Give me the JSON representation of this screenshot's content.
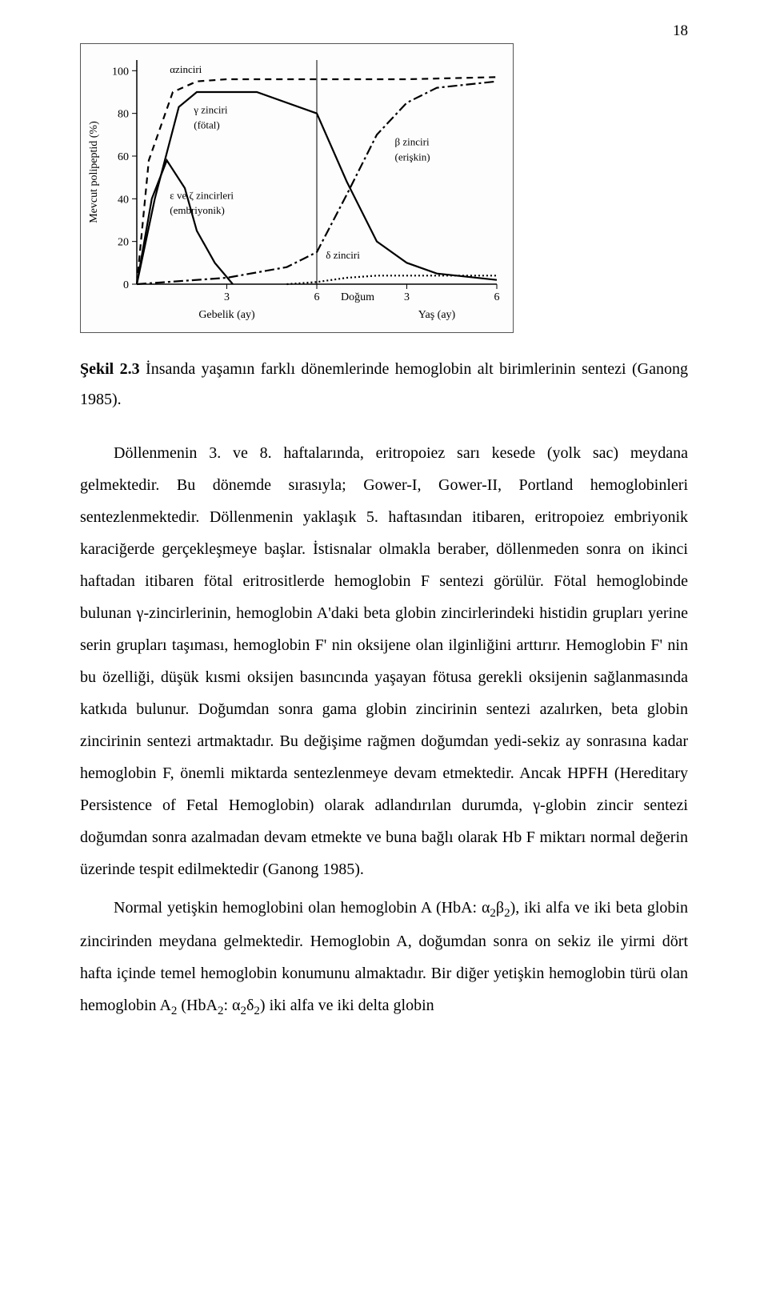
{
  "page_number": "18",
  "figure": {
    "type": "line",
    "y_axis_label": "Mevcut polipeptid (%)",
    "y_ticks": [
      0,
      20,
      40,
      60,
      80,
      100
    ],
    "ylim": [
      0,
      105
    ],
    "x_ticks_left": [
      "3",
      "6"
    ],
    "x_ticks_right": [
      "3",
      "6"
    ],
    "x_label_left": "Gebelik (ay)",
    "x_label_center": "Doğum",
    "x_label_right": "Yaş (ay)",
    "series_labels": {
      "alpha": "αzinciri",
      "gamma": "γ zinciri\n(fötal)",
      "beta": "β zinciri\n(erişkin)",
      "epsilon": "ε ve ζ zincirleri\n(embriyonik)",
      "delta": "δ zinciri"
    },
    "colors": {
      "line": "#000000",
      "background": "#fdfdfd",
      "border": "#555555",
      "text": "#000000"
    },
    "line_width": 2.2,
    "dash_patterns": {
      "alpha": "8,6",
      "gamma": "none",
      "beta": "12,4,3,4",
      "epsilon": "none",
      "delta": "2,3"
    },
    "series": {
      "alpha": {
        "x": [
          0,
          0.2,
          0.6,
          1.0,
          1.5,
          3.0,
          4.5,
          6.0
        ],
        "y": [
          0,
          58,
          90,
          95,
          96,
          96,
          96,
          97
        ]
      },
      "gamma": {
        "x": [
          0,
          0.3,
          0.7,
          1.0,
          2.0,
          3.0,
          3.5,
          4.0,
          4.5,
          5.0,
          6.0
        ],
        "y": [
          0,
          40,
          83,
          90,
          90,
          80,
          48,
          20,
          10,
          5,
          2
        ]
      },
      "beta": {
        "x": [
          0,
          1.5,
          2.5,
          3.0,
          3.5,
          4.0,
          4.5,
          5.0,
          6.0
        ],
        "y": [
          0,
          3,
          8,
          15,
          42,
          70,
          85,
          92,
          95
        ]
      },
      "epsilon": {
        "x": [
          0,
          0.25,
          0.5,
          0.8,
          1.0,
          1.3,
          1.6
        ],
        "y": [
          0,
          40,
          58,
          45,
          25,
          10,
          0
        ]
      },
      "delta": {
        "x": [
          2.5,
          3.0,
          3.5,
          4.0,
          5.0,
          6.0
        ],
        "y": [
          0,
          1,
          3,
          4,
          4,
          4
        ]
      }
    }
  },
  "caption": {
    "label": "Şekil 2.3",
    "text": " İnsanda yaşamın farklı dönemlerinde hemoglobin alt birimlerinin sentezi (Ganong 1985)."
  },
  "paragraphs": {
    "p1": "Döllenmenin 3. ve 8. haftalarında, eritropoiez sarı kesede (yolk sac) meydana gelmektedir. Bu dönemde sırasıyla; Gower-I, Gower-II, Portland hemoglobinleri sentezlenmektedir. Döllenmenin yaklaşık 5. haftasından itibaren, eritropoiez embriyonik karaciğerde gerçekleşmeye başlar. İstisnalar olmakla beraber, döllenmeden sonra on ikinci haftadan itibaren fötal eritrositlerde hemoglobin F sentezi görülür. Fötal hemoglobinde bulunan γ-zincirlerinin, hemoglobin A'daki beta globin zincirlerindeki histidin grupları yerine serin grupları taşıması, hemoglobin F' nin oksijene olan ilginliğini arttırır. Hemoglobin F' nin bu özelliği, düşük kısmi oksijen basıncında yaşayan fötusa gerekli oksijenin sağlanmasında katkıda bulunur. Doğumdan sonra gama globin zincirinin sentezi azalırken, beta globin zincirinin sentezi artmaktadır. Bu değişime rağmen doğumdan yedi-sekiz ay sonrasına kadar hemoglobin F, önemli miktarda sentezlenmeye devam etmektedir. Ancak HPFH (Hereditary Persistence of Fetal Hemoglobin) olarak adlandırılan durumda, γ-globin zincir sentezi doğumdan sonra azalmadan devam etmekte ve buna bağlı olarak Hb F miktarı normal değerin üzerinde tespit edilmektedir (Ganong 1985).",
    "p2_pre": "Normal yetişkin hemoglobini olan hemoglobin A (HbA: α",
    "p2_sub1": "2",
    "p2_mid1": "β",
    "p2_sub2": "2",
    "p2_mid2": "), iki alfa ve iki beta globin zincirinden meydana gelmektedir. Hemoglobin A, doğumdan sonra on sekiz ile yirmi dört hafta içinde temel hemoglobin konumunu almaktadır. Bir diğer yetişkin hemoglobin türü olan hemoglobin A",
    "p2_sub3": "2",
    "p2_mid3": " (HbA",
    "p2_sub4": "2",
    "p2_mid4": ": α",
    "p2_sub5": "2",
    "p2_mid5": "δ",
    "p2_sub6": "2",
    "p2_end": ") iki alfa ve iki delta globin"
  }
}
